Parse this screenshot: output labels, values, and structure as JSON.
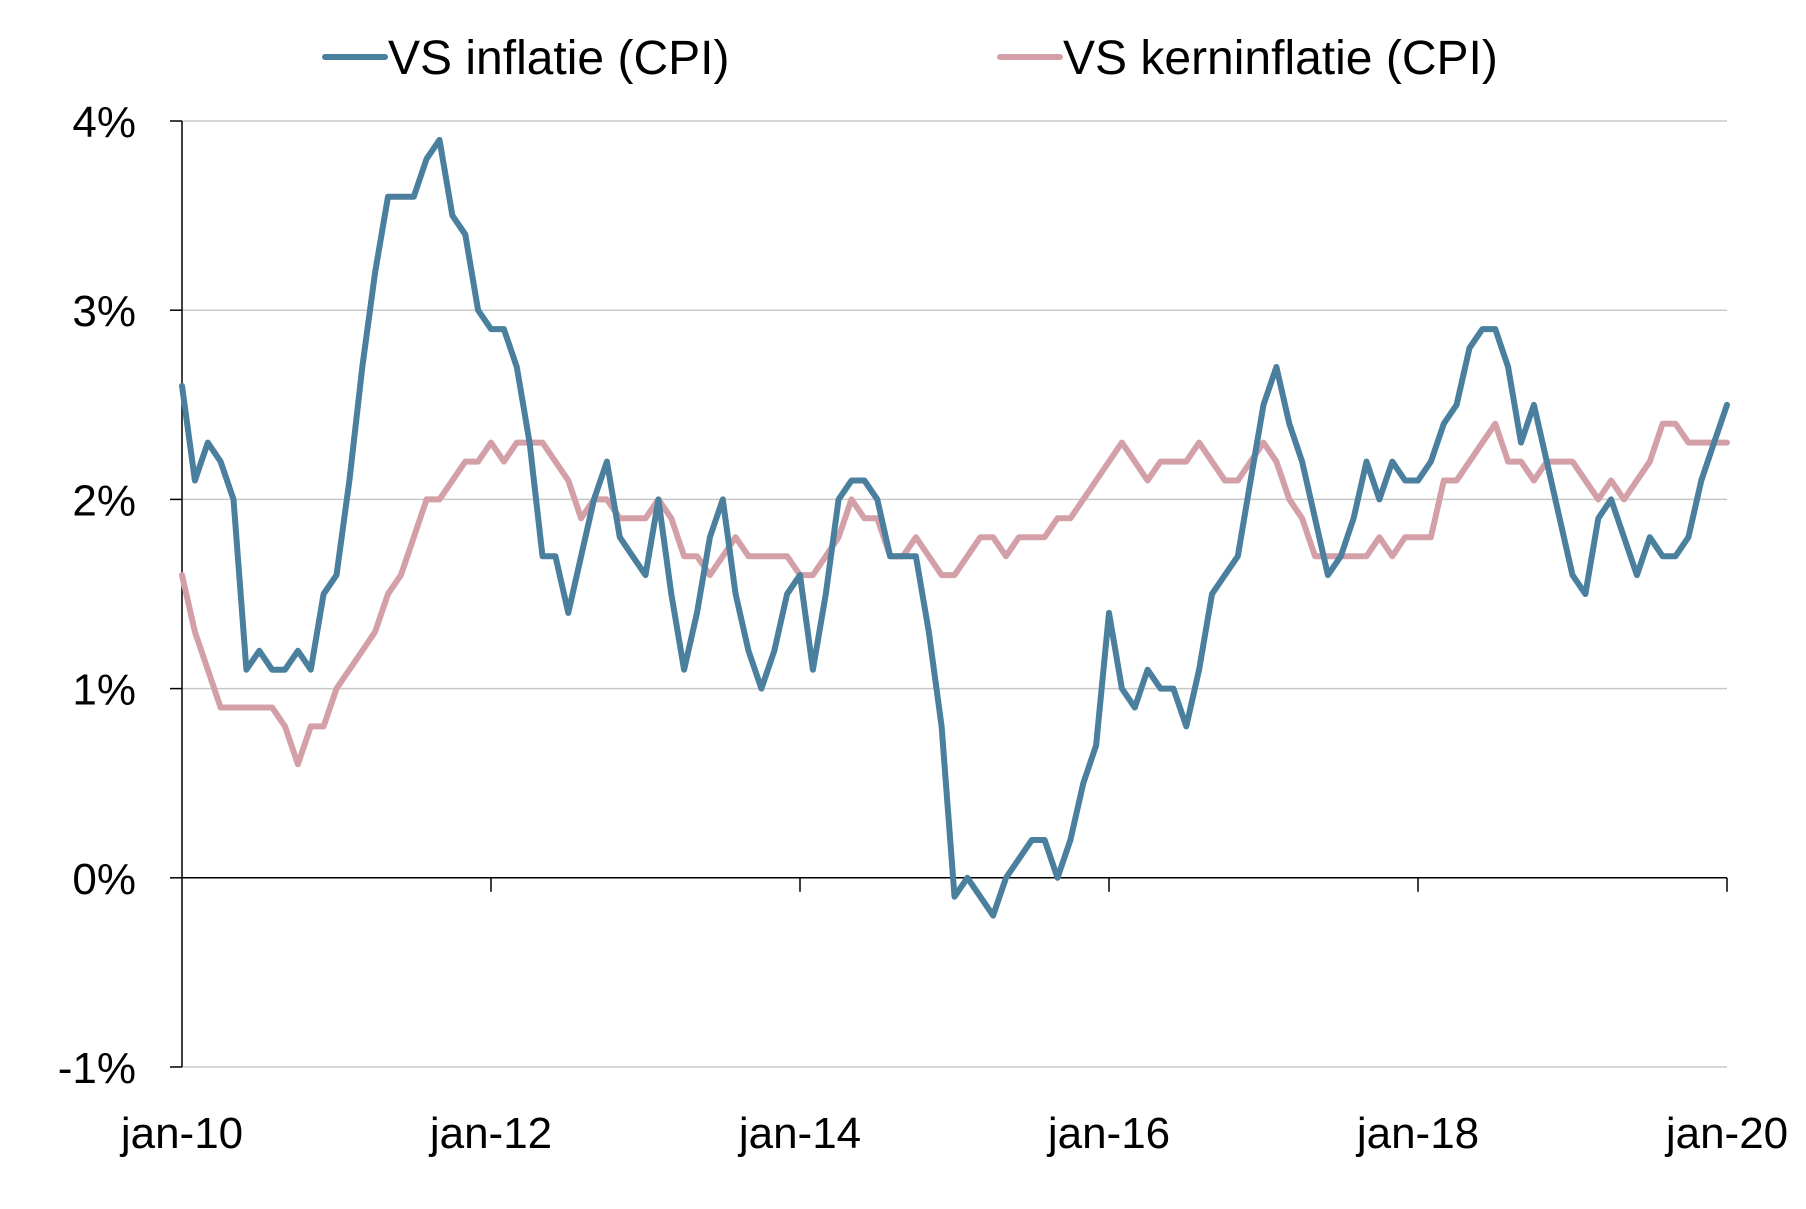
{
  "chart_data": {
    "type": "line",
    "title": "",
    "xlabel": "",
    "ylabel": "",
    "ylim": [
      -1,
      4
    ],
    "yticks": [
      -1,
      0,
      1,
      2,
      3,
      4
    ],
    "ytick_labels": [
      "-1%",
      "0%",
      "1%",
      "2%",
      "3%",
      "4%"
    ],
    "xlim": [
      "2010-01",
      "2020-01"
    ],
    "xtick_labels": [
      "jan-10",
      "jan-12",
      "jan-14",
      "jan-16",
      "jan-18",
      "jan-20"
    ],
    "xtick_positions": [
      0,
      24,
      48,
      72,
      96,
      120
    ],
    "grid": "horizontal",
    "legend_position": "top",
    "series": [
      {
        "name": "VS inflatie (CPI)",
        "color": "#4a7f9e",
        "values": [
          2.6,
          2.1,
          2.3,
          2.2,
          2.0,
          1.1,
          1.2,
          1.1,
          1.1,
          1.2,
          1.1,
          1.5,
          1.6,
          2.1,
          2.7,
          3.2,
          3.6,
          3.6,
          3.6,
          3.8,
          3.9,
          3.5,
          3.4,
          3.0,
          2.9,
          2.9,
          2.7,
          2.3,
          1.7,
          1.7,
          1.4,
          1.7,
          2.0,
          2.2,
          1.8,
          1.7,
          1.6,
          2.0,
          1.5,
          1.1,
          1.4,
          1.8,
          2.0,
          1.5,
          1.2,
          1.0,
          1.2,
          1.5,
          1.6,
          1.1,
          1.5,
          2.0,
          2.1,
          2.1,
          2.0,
          1.7,
          1.7,
          1.7,
          1.3,
          0.8,
          -0.1,
          0.0,
          -0.1,
          -0.2,
          0.0,
          0.1,
          0.2,
          0.2,
          0.0,
          0.2,
          0.5,
          0.7,
          1.4,
          1.0,
          0.9,
          1.1,
          1.0,
          1.0,
          0.8,
          1.1,
          1.5,
          1.6,
          1.7,
          2.1,
          2.5,
          2.7,
          2.4,
          2.2,
          1.9,
          1.6,
          1.7,
          1.9,
          2.2,
          2.0,
          2.2,
          2.1,
          2.1,
          2.2,
          2.4,
          2.5,
          2.8,
          2.9,
          2.9,
          2.7,
          2.3,
          2.5,
          2.2,
          1.9,
          1.6,
          1.5,
          1.9,
          2.0,
          1.8,
          1.6,
          1.8,
          1.7,
          1.7,
          1.8,
          2.1,
          2.3,
          2.5
        ]
      },
      {
        "name": "VS kerninflatie (CPI)",
        "color": "#d4a0a8",
        "values": [
          1.6,
          1.3,
          1.1,
          0.9,
          0.9,
          0.9,
          0.9,
          0.9,
          0.8,
          0.6,
          0.8,
          0.8,
          1.0,
          1.1,
          1.2,
          1.3,
          1.5,
          1.6,
          1.8,
          2.0,
          2.0,
          2.1,
          2.2,
          2.2,
          2.3,
          2.2,
          2.3,
          2.3,
          2.3,
          2.2,
          2.1,
          1.9,
          2.0,
          2.0,
          1.9,
          1.9,
          1.9,
          2.0,
          1.9,
          1.7,
          1.7,
          1.6,
          1.7,
          1.8,
          1.7,
          1.7,
          1.7,
          1.7,
          1.6,
          1.6,
          1.7,
          1.8,
          2.0,
          1.9,
          1.9,
          1.7,
          1.7,
          1.8,
          1.7,
          1.6,
          1.6,
          1.7,
          1.8,
          1.8,
          1.7,
          1.8,
          1.8,
          1.8,
          1.9,
          1.9,
          2.0,
          2.1,
          2.2,
          2.3,
          2.2,
          2.1,
          2.2,
          2.2,
          2.2,
          2.3,
          2.2,
          2.1,
          2.1,
          2.2,
          2.3,
          2.2,
          2.0,
          1.9,
          1.7,
          1.7,
          1.7,
          1.7,
          1.7,
          1.8,
          1.7,
          1.8,
          1.8,
          1.8,
          2.1,
          2.1,
          2.2,
          2.3,
          2.4,
          2.2,
          2.2,
          2.1,
          2.2,
          2.2,
          2.2,
          2.1,
          2.0,
          2.1,
          2.0,
          2.1,
          2.2,
          2.4,
          2.4,
          2.3,
          2.3,
          2.3,
          2.3
        ]
      }
    ]
  }
}
